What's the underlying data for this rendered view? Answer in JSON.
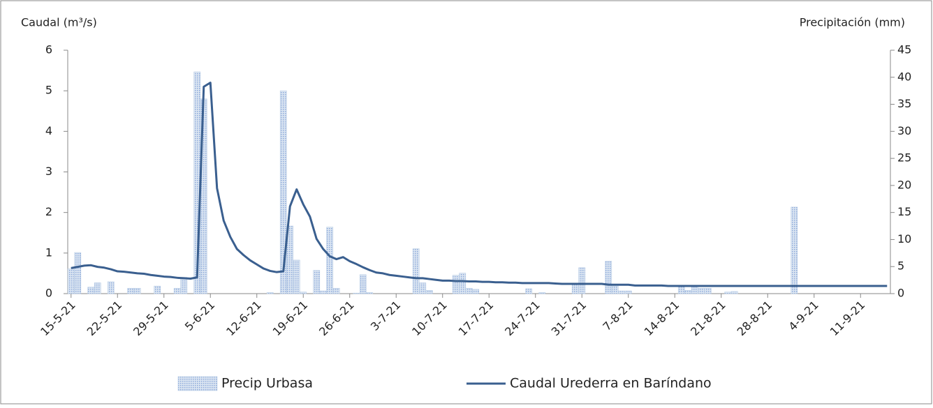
{
  "chart_data": {
    "type": "bar-line",
    "y_label": "Caudal (m³/s)",
    "y2_label": "Precipitación (mm)",
    "categories": [
      "15-5-21",
      null,
      null,
      null,
      null,
      null,
      null,
      "22-5-21",
      null,
      null,
      null,
      null,
      null,
      null,
      "29-5-21",
      null,
      null,
      null,
      null,
      null,
      null,
      "5-6-21",
      null,
      null,
      null,
      null,
      null,
      null,
      "12-6-21",
      null,
      null,
      null,
      null,
      null,
      null,
      "19-6-21",
      null,
      null,
      null,
      null,
      null,
      null,
      "26-6-21",
      null,
      null,
      null,
      null,
      null,
      null,
      "3-7-21",
      null,
      null,
      null,
      null,
      null,
      null,
      "10-7-21",
      null,
      null,
      null,
      null,
      null,
      null,
      "17-7-21",
      null,
      null,
      null,
      null,
      null,
      null,
      "24-7-21",
      null,
      null,
      null,
      null,
      null,
      null,
      "31-7-21",
      null,
      null,
      null,
      null,
      null,
      null,
      "7-8-21",
      null,
      null,
      null,
      null,
      null,
      null,
      "14-8-21",
      null,
      null,
      null,
      null,
      null,
      null,
      "21-8-21",
      null,
      null,
      null,
      null,
      null,
      null,
      "28-8-21",
      null,
      null,
      null,
      null,
      null,
      null,
      "4-9-21",
      null,
      null,
      null,
      null,
      null,
      null,
      "11-9-21",
      null,
      null,
      null,
      null
    ],
    "series": [
      {
        "name": "Precip Urbasa",
        "kind": "bar",
        "axis": "y2",
        "color": "#b9cde5",
        "values": [
          4.6,
          7.6,
          0,
          1.2,
          2,
          0,
          2.2,
          0,
          0,
          1,
          1,
          0,
          0,
          1.4,
          0,
          0,
          1,
          3,
          0,
          41,
          36,
          0,
          0,
          0,
          0,
          0,
          0,
          0,
          0,
          0,
          0.2,
          0,
          37.5,
          12.5,
          6.2,
          0.3,
          0,
          4.3,
          0.5,
          12.3,
          1,
          0,
          0,
          0.1,
          3.5,
          0.2,
          0,
          0,
          0,
          0,
          0,
          0,
          8.3,
          2,
          0.6,
          0,
          0,
          0,
          3.4,
          3.8,
          1,
          0.8,
          0,
          0,
          0,
          0,
          0,
          0,
          0,
          0.9,
          0,
          0.2,
          0,
          0,
          0,
          0,
          1.8,
          4.8,
          0,
          0,
          0,
          6,
          1.4,
          0.5,
          0.5,
          0,
          0,
          0,
          0,
          0,
          0,
          0,
          1.4,
          0.6,
          1.4,
          1,
          1,
          0,
          0,
          0.3,
          0.4,
          0,
          0,
          0,
          0,
          0,
          0,
          0,
          0,
          16,
          0,
          0,
          0,
          0,
          0,
          0,
          0,
          0,
          0,
          0,
          0,
          0,
          0,
          0
        ]
      },
      {
        "name": "Caudal Urederra en Baríndano",
        "kind": "line",
        "axis": "y",
        "color": "#3a5f8f",
        "values": [
          0.63,
          0.66,
          0.69,
          0.7,
          0.66,
          0.64,
          0.6,
          0.55,
          0.54,
          0.52,
          0.5,
          0.49,
          0.46,
          0.44,
          0.42,
          0.41,
          0.39,
          0.38,
          0.37,
          0.4,
          5.1,
          5.2,
          2.6,
          1.8,
          1.4,
          1.1,
          0.95,
          0.82,
          0.72,
          0.62,
          0.56,
          0.53,
          0.55,
          2.15,
          2.57,
          2.2,
          1.9,
          1.35,
          1.1,
          0.92,
          0.85,
          0.9,
          0.8,
          0.73,
          0.65,
          0.58,
          0.52,
          0.5,
          0.46,
          0.44,
          0.42,
          0.4,
          0.38,
          0.38,
          0.36,
          0.34,
          0.32,
          0.32,
          0.31,
          0.31,
          0.3,
          0.3,
          0.29,
          0.29,
          0.28,
          0.28,
          0.27,
          0.27,
          0.26,
          0.26,
          0.26,
          0.26,
          0.26,
          0.25,
          0.24,
          0.24,
          0.24,
          0.24,
          0.24,
          0.24,
          0.24,
          0.22,
          0.22,
          0.22,
          0.22,
          0.2,
          0.2,
          0.2,
          0.2,
          0.2,
          0.19,
          0.19,
          0.19,
          0.19,
          0.19,
          0.19,
          0.19,
          0.19,
          0.19,
          0.19,
          0.19,
          0.19,
          0.19,
          0.19,
          0.19,
          0.19,
          0.19,
          0.19,
          0.19,
          0.19,
          0.19,
          0.19,
          0.19,
          0.19,
          0.19,
          0.19,
          0.19,
          0.19,
          0.19,
          0.19,
          0.19,
          0.19,
          0.19,
          0.19
        ]
      }
    ],
    "ylim": [
      0,
      6
    ],
    "yticks": [
      0,
      1,
      2,
      3,
      4,
      5,
      6
    ],
    "y2lim": [
      0,
      45
    ],
    "y2ticks": [
      0,
      5,
      10,
      15,
      20,
      25,
      30,
      35,
      40,
      45
    ],
    "legend": "bottom"
  }
}
